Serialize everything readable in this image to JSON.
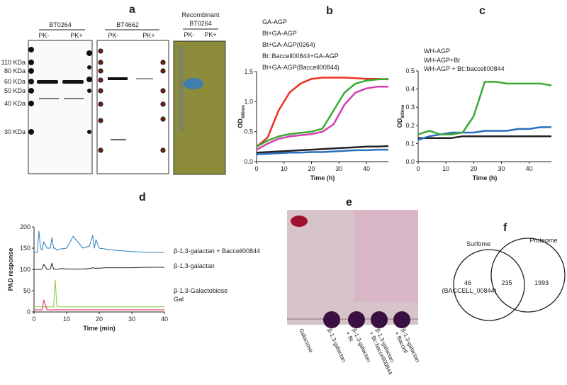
{
  "panel_a": {
    "label": "a",
    "gels": [
      {
        "title": "BT0264",
        "lanes": [
          "PK-",
          "PK+"
        ]
      },
      {
        "title": "BT4662",
        "lanes": [
          "PK-",
          "PK+"
        ]
      },
      {
        "title": "Recombinant",
        "subtitle": "BT0264",
        "lanes": [
          "PK-",
          "PK+"
        ]
      }
    ],
    "markers": [
      "110 KDa",
      "80 KDa",
      "60 KDa",
      "50 KDa",
      "40 KDa",
      "30 KDa"
    ]
  },
  "chart_data": [
    {
      "type": "line",
      "label": "b",
      "x_label": "Time (h)",
      "y_label": "OD",
      "y_label_sub": "600nm",
      "x": [
        0,
        4,
        8,
        12,
        16,
        20,
        24,
        28,
        32,
        36,
        40,
        44,
        48
      ],
      "xlim": [
        0,
        48
      ],
      "xticks": [
        0,
        10,
        20,
        30,
        40
      ],
      "ylim": [
        0,
        1.5
      ],
      "yticks": [
        {
          "value": 0,
          "label": "0.0"
        },
        0.5,
        {
          "value": 1,
          "label": "1.0"
        },
        1.5
      ],
      "series": [
        {
          "name": "GA-AGP",
          "color": "#222222",
          "values": [
            0.15,
            0.16,
            0.17,
            0.18,
            0.19,
            0.2,
            0.21,
            0.22,
            0.23,
            0.24,
            0.25,
            0.25,
            0.26
          ]
        },
        {
          "name": "Bt+GA-AGP",
          "color": "#2a6fc0",
          "values": [
            0.12,
            0.13,
            0.14,
            0.15,
            0.15,
            0.16,
            0.16,
            0.17,
            0.18,
            0.19,
            0.19,
            0.2,
            0.2
          ]
        },
        {
          "name": "Bt+GA-AGP(0264)",
          "color": "#e8331c",
          "values": [
            0.25,
            0.4,
            0.85,
            1.15,
            1.3,
            1.38,
            1.4,
            1.4,
            1.4,
            1.39,
            1.38,
            1.38,
            1.37
          ]
        },
        {
          "name": "Bt::Baccell00844+GA-AGP",
          "color": "#3aaa35",
          "values": [
            0.25,
            0.35,
            0.42,
            0.46,
            0.48,
            0.5,
            0.55,
            0.85,
            1.15,
            1.3,
            1.35,
            1.37,
            1.38
          ]
        },
        {
          "name": "Bt+GA-AGP(Baccell00844)",
          "color": "#d23fb0",
          "values": [
            0.2,
            0.3,
            0.38,
            0.42,
            0.44,
            0.46,
            0.5,
            0.62,
            0.95,
            1.15,
            1.22,
            1.25,
            1.25
          ]
        }
      ]
    },
    {
      "type": "line",
      "label": "c",
      "x_label": "Time (h)",
      "y_label": "OD",
      "y_label_sub": "600nm",
      "x": [
        0,
        4,
        8,
        12,
        16,
        20,
        24,
        28,
        32,
        36,
        40,
        44,
        48
      ],
      "xlim": [
        0,
        48
      ],
      "xticks": [
        0,
        10,
        20,
        30,
        40
      ],
      "ylim": [
        0,
        0.5
      ],
      "yticks": [
        {
          "value": 0,
          "label": "0.0"
        },
        0.1,
        0.2,
        0.3,
        0.4,
        0.5
      ],
      "series": [
        {
          "name": "WH-AGP",
          "color": "#222222",
          "values": [
            0.13,
            0.13,
            0.13,
            0.13,
            0.14,
            0.14,
            0.14,
            0.14,
            0.14,
            0.14,
            0.14,
            0.14,
            0.14
          ]
        },
        {
          "name": "WH-AGP+Bt",
          "color": "#2a6fc0",
          "values": [
            0.12,
            0.14,
            0.15,
            0.16,
            0.16,
            0.16,
            0.17,
            0.17,
            0.17,
            0.18,
            0.18,
            0.19,
            0.19
          ]
        },
        {
          "name": "WH-AGP + Bt::baccell00844",
          "color": "#3aaa35",
          "values": [
            0.15,
            0.17,
            0.15,
            0.15,
            0.16,
            0.25,
            0.44,
            0.44,
            0.43,
            0.43,
            0.43,
            0.43,
            0.42
          ]
        }
      ]
    },
    {
      "type": "line",
      "label": "d",
      "x_label": "Time (min)",
      "y_label": "PAD response",
      "x": [
        0,
        1,
        1.5,
        2,
        2.5,
        3,
        4,
        5,
        5.5,
        6,
        6.5,
        7,
        8,
        10,
        12,
        15,
        17,
        18,
        18.5,
        19,
        20,
        22,
        25,
        30,
        35,
        40
      ],
      "xlim": [
        0,
        40
      ],
      "xticks": [
        0,
        10,
        20,
        30,
        40
      ],
      "ylim": [
        0,
        200
      ],
      "yticks": [
        0,
        50,
        100,
        150,
        200
      ],
      "series": [
        {
          "name": "β-1,3-galactan + Baccell00844",
          "color": "#2a7fc0",
          "values": [
            140,
            140,
            190,
            150,
            145,
            165,
            150,
            150,
            175,
            150,
            150,
            145,
            148,
            150,
            178,
            150,
            155,
            180,
            150,
            170,
            150,
            148,
            145,
            142,
            140,
            140
          ]
        },
        {
          "name": "β-1,3-galactan",
          "color": "#222222",
          "values": [
            100,
            100,
            100,
            100,
            101,
            112,
            100,
            101,
            115,
            101,
            101,
            100,
            102,
            101,
            101,
            101,
            102,
            104,
            103,
            103,
            103,
            104,
            104,
            104,
            105,
            105
          ]
        },
        {
          "name": "β-1,3-Galactobiose",
          "color": "#8cc43c",
          "values": [
            12,
            12,
            12,
            12,
            12,
            12,
            12,
            12,
            12,
            12,
            75,
            14,
            12,
            12,
            12,
            12,
            12,
            12,
            12,
            12,
            12,
            12,
            12,
            12,
            12,
            12
          ]
        },
        {
          "name": "Gal",
          "color": "#e0204a",
          "values": [
            5,
            5,
            5,
            5,
            5,
            28,
            5,
            5,
            5,
            5,
            5,
            5,
            5,
            5,
            5,
            5,
            5,
            5,
            5,
            5,
            5,
            5,
            5,
            5,
            5,
            5
          ]
        }
      ]
    }
  ],
  "panel_e": {
    "label": "e",
    "lanes": [
      [
        "Galactose"
      ],
      [
        "β-1,3-galactan"
      ],
      [
        "β-1,3-galactan",
        "+ Bt"
      ],
      [
        "β-1,3-galactan",
        "+ Bt::baccell00844"
      ],
      [
        "β-1,3-galactan",
        "+ Baccell"
      ]
    ]
  },
  "panel_f": {
    "label": "f",
    "sets": [
      "Surfome",
      "Proteome"
    ],
    "left_only": 46,
    "left_note": "(BACCELL_00844)",
    "both": 235,
    "right_only": 1993
  }
}
